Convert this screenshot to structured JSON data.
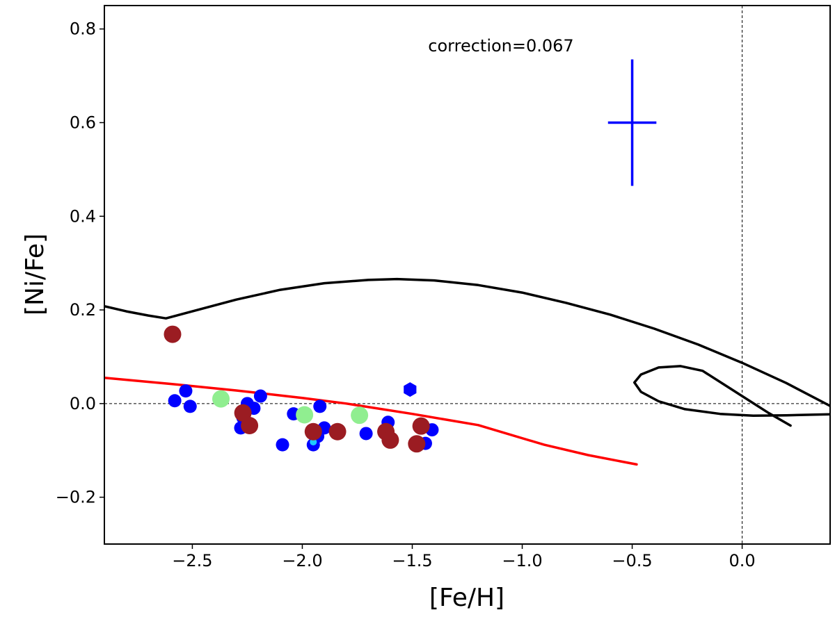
{
  "chart_data": {
    "type": "scatter",
    "xlabel": "[Fe/H]",
    "ylabel": "[Ni/Fe]",
    "xlim": [
      -2.9,
      0.4
    ],
    "ylim": [
      -0.3,
      0.85
    ],
    "xticks": [
      -2.5,
      -2.0,
      -1.5,
      -1.0,
      -0.5,
      0.0
    ],
    "xtick_labels": [
      "−2.5",
      "−2.0",
      "−1.5",
      "−1.0",
      "−0.5",
      "0.0"
    ],
    "yticks": [
      -0.2,
      0.0,
      0.2,
      0.4,
      0.6,
      0.8
    ],
    "ytick_labels": [
      "−0.2",
      "0.0",
      "0.2",
      "0.4",
      "0.6",
      "0.8"
    ],
    "grid": false,
    "annotation": "correction=0.067",
    "reference_lines": {
      "y": 0.0,
      "x": 0.0,
      "style": "dashed"
    },
    "error_bar": {
      "x": -0.5,
      "y": 0.6,
      "xerr": 0.11,
      "yerr": 0.135,
      "color": "#0000ff"
    },
    "series": [
      {
        "marker": "circle",
        "color": "#0000ff",
        "points": [
          [
            -2.58,
            0.006
          ],
          [
            -2.53,
            0.027
          ],
          [
            -2.51,
            -0.006
          ],
          [
            -2.28,
            -0.052
          ],
          [
            -2.27,
            -0.03
          ],
          [
            -2.25,
            0.0
          ],
          [
            -2.22,
            -0.01
          ],
          [
            -2.19,
            0.016
          ],
          [
            -2.09,
            -0.088
          ],
          [
            -2.04,
            -0.022
          ],
          [
            -1.95,
            -0.088
          ],
          [
            -1.93,
            -0.07
          ],
          [
            -1.92,
            -0.006
          ],
          [
            -1.9,
            -0.052
          ],
          [
            -1.71,
            -0.064
          ],
          [
            -1.61,
            -0.04
          ],
          [
            -1.44,
            -0.085
          ],
          [
            -1.41,
            -0.056
          ]
        ]
      },
      {
        "marker": "hexagon",
        "color": "#0000ff",
        "points": [
          [
            -1.51,
            0.03
          ]
        ]
      },
      {
        "marker": "circle",
        "color": "#1ec8ff",
        "points": [
          [
            -1.95,
            -0.082
          ]
        ]
      },
      {
        "marker": "circle",
        "color": "#90ee90",
        "points": [
          [
            -2.37,
            0.01
          ],
          [
            -1.99,
            -0.024
          ],
          [
            -1.74,
            -0.025
          ]
        ]
      },
      {
        "marker": "circle",
        "color": "#9b1c22",
        "points": [
          [
            -2.59,
            0.148
          ],
          [
            -2.27,
            -0.02
          ],
          [
            -2.24,
            -0.047
          ],
          [
            -1.95,
            -0.06
          ],
          [
            -1.84,
            -0.06
          ],
          [
            -1.62,
            -0.06
          ],
          [
            -1.6,
            -0.078
          ],
          [
            -1.48,
            -0.086
          ],
          [
            -1.46,
            -0.048
          ]
        ]
      }
    ],
    "lines": [
      {
        "color": "#ff0000",
        "points": [
          [
            -2.9,
            0.055
          ],
          [
            -2.6,
            0.042
          ],
          [
            -2.3,
            0.028
          ],
          [
            -2.0,
            0.012
          ],
          [
            -1.8,
            0.0
          ],
          [
            -1.5,
            -0.022
          ],
          [
            -1.2,
            -0.046
          ],
          [
            -0.9,
            -0.088
          ],
          [
            -0.7,
            -0.11
          ],
          [
            -0.48,
            -0.13
          ]
        ]
      },
      {
        "color": "#000000",
        "points": [
          [
            -2.9,
            0.208
          ],
          [
            -2.8,
            0.197
          ],
          [
            -2.7,
            0.188
          ],
          [
            -2.62,
            0.182
          ],
          [
            -2.5,
            0.197
          ],
          [
            -2.3,
            0.222
          ],
          [
            -2.1,
            0.243
          ],
          [
            -1.9,
            0.257
          ],
          [
            -1.7,
            0.264
          ],
          [
            -1.57,
            0.266
          ],
          [
            -1.4,
            0.263
          ],
          [
            -1.2,
            0.253
          ],
          [
            -1.0,
            0.237
          ],
          [
            -0.8,
            0.215
          ],
          [
            -0.6,
            0.19
          ],
          [
            -0.4,
            0.16
          ],
          [
            -0.2,
            0.126
          ],
          [
            0.0,
            0.087
          ],
          [
            0.2,
            0.044
          ],
          [
            0.4,
            -0.005
          ]
        ]
      },
      {
        "color": "#000000",
        "points": [
          [
            0.22,
            -0.047
          ],
          [
            0.12,
            -0.02
          ],
          [
            0.02,
            0.01
          ],
          [
            -0.08,
            0.04
          ],
          [
            -0.18,
            0.07
          ],
          [
            -0.28,
            0.08
          ],
          [
            -0.38,
            0.077
          ],
          [
            -0.46,
            0.062
          ],
          [
            -0.49,
            0.045
          ],
          [
            -0.46,
            0.025
          ],
          [
            -0.38,
            0.005
          ],
          [
            -0.26,
            -0.012
          ],
          [
            -0.1,
            -0.022
          ],
          [
            0.05,
            -0.026
          ],
          [
            0.2,
            -0.025
          ],
          [
            0.4,
            -0.023
          ]
        ]
      }
    ]
  }
}
